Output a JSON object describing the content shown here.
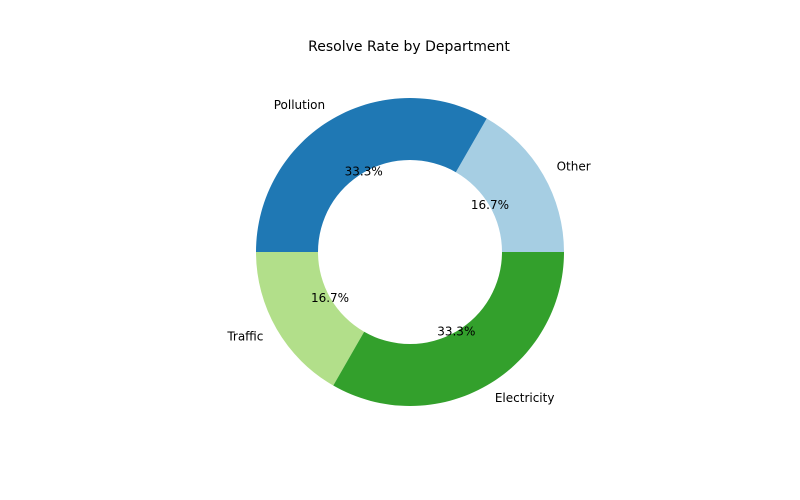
{
  "chart_data": {
    "type": "pie",
    "style": "donut",
    "title": "Resolve Rate by Department",
    "start_angle_deg": 0,
    "direction": "counterclockwise",
    "slices": [
      {
        "label": "Other",
        "value": 16.7,
        "pct_label": "16.7%",
        "color": "#a6cee3"
      },
      {
        "label": "Pollution",
        "value": 33.3,
        "pct_label": "33.3%",
        "color": "#1f78b4"
      },
      {
        "label": "Traffic",
        "value": 16.7,
        "pct_label": "16.7%",
        "color": "#b2df8a"
      },
      {
        "label": "Electricity",
        "value": 33.3,
        "pct_label": "33.3%",
        "color": "#33a02c"
      }
    ]
  }
}
